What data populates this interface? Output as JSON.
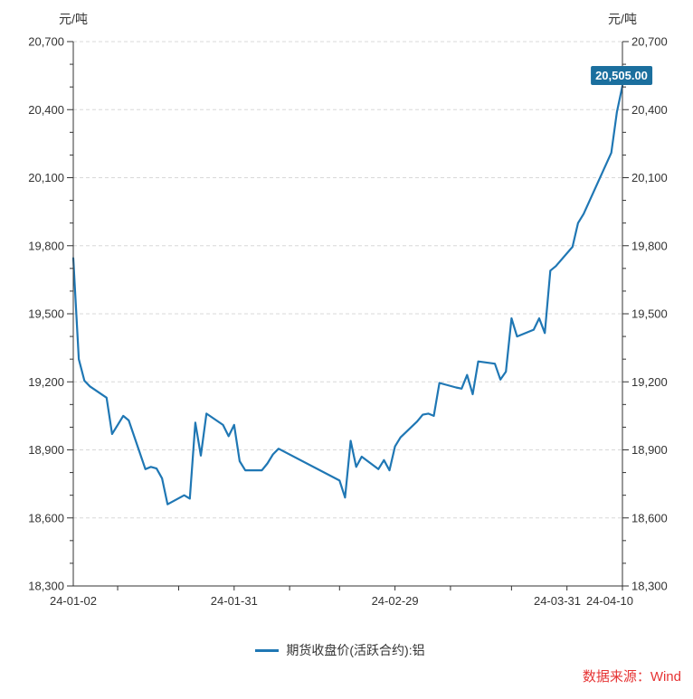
{
  "chart": {
    "left_axis_title": "元/吨",
    "right_axis_title": "元/吨",
    "badge_color": "#1b6f9e",
    "axis_color": "#333333",
    "grid_color": "#d8d8d8",
    "label_color": "#333333"
  },
  "legend": {
    "label": "期货收盘价(活跃合约):铝"
  },
  "footer": {
    "source_label": "数据来源：Wind",
    "color": "#e63434"
  },
  "chart_data": {
    "type": "line",
    "title": "",
    "ylabel_left": "元/吨",
    "ylabel_right": "元/吨",
    "ylim": [
      18300,
      20700
    ],
    "y_major_step": 300,
    "y_minor_step": 100,
    "grid": "horizontal-dashed",
    "legend_position": "bottom",
    "x_label_dates": [
      "24-01-02",
      "24-01-31",
      "24-02-29",
      "24-03-31",
      "24-04-10"
    ],
    "x_tick_dates": [
      "24-01-10",
      "24-01-21",
      "24-01-31",
      "24-02-10",
      "24-02-19",
      "24-02-29",
      "24-03-10",
      "24-03-21",
      "24-03-31",
      "24-04-10"
    ],
    "last_value_label": "20,505.00",
    "series": [
      {
        "name": "期货收盘价(活跃合约):铝",
        "color": "#1f77b4",
        "points": [
          [
            "24-01-02",
            19745
          ],
          [
            "24-01-03",
            19300
          ],
          [
            "24-01-04",
            19205
          ],
          [
            "24-01-05",
            19180
          ],
          [
            "24-01-08",
            19130
          ],
          [
            "24-01-09",
            18970
          ],
          [
            "24-01-10",
            19010
          ],
          [
            "24-01-11",
            19050
          ],
          [
            "24-01-12",
            19030
          ],
          [
            "24-01-15",
            18815
          ],
          [
            "24-01-16",
            18825
          ],
          [
            "24-01-17",
            18818
          ],
          [
            "24-01-18",
            18775
          ],
          [
            "24-01-19",
            18660
          ],
          [
            "24-01-22",
            18700
          ],
          [
            "24-01-23",
            18685
          ],
          [
            "24-01-24",
            19020
          ],
          [
            "24-01-25",
            18875
          ],
          [
            "24-01-26",
            19060
          ],
          [
            "24-01-29",
            19010
          ],
          [
            "24-01-30",
            18960
          ],
          [
            "24-01-31",
            19010
          ],
          [
            "24-02-01",
            18850
          ],
          [
            "24-02-02",
            18810
          ],
          [
            "24-02-05",
            18810
          ],
          [
            "24-02-06",
            18840
          ],
          [
            "24-02-07",
            18880
          ],
          [
            "24-02-08",
            18905
          ],
          [
            "24-02-19",
            18765
          ],
          [
            "24-02-20",
            18690
          ],
          [
            "24-02-21",
            18940
          ],
          [
            "24-02-22",
            18825
          ],
          [
            "24-02-23",
            18870
          ],
          [
            "24-02-26",
            18815
          ],
          [
            "24-02-27",
            18855
          ],
          [
            "24-02-28",
            18810
          ],
          [
            "24-02-29",
            18915
          ],
          [
            "24-03-01",
            18955
          ],
          [
            "24-03-04",
            19025
          ],
          [
            "24-03-05",
            19055
          ],
          [
            "24-03-06",
            19060
          ],
          [
            "24-03-07",
            19050
          ],
          [
            "24-03-08",
            19195
          ],
          [
            "24-03-11",
            19175
          ],
          [
            "24-03-12",
            19170
          ],
          [
            "24-03-13",
            19230
          ],
          [
            "24-03-14",
            19145
          ],
          [
            "24-03-15",
            19290
          ],
          [
            "24-03-18",
            19280
          ],
          [
            "24-03-19",
            19210
          ],
          [
            "24-03-20",
            19245
          ],
          [
            "24-03-21",
            19480
          ],
          [
            "24-03-22",
            19400
          ],
          [
            "24-03-25",
            19430
          ],
          [
            "24-03-26",
            19480
          ],
          [
            "24-03-27",
            19415
          ],
          [
            "24-03-28",
            19690
          ],
          [
            "24-03-29",
            19710
          ],
          [
            "24-04-01",
            19795
          ],
          [
            "24-04-02",
            19900
          ],
          [
            "24-04-03",
            19940
          ],
          [
            "24-04-08",
            20210
          ],
          [
            "24-04-09",
            20390
          ],
          [
            "24-04-10",
            20505
          ]
        ]
      }
    ]
  }
}
